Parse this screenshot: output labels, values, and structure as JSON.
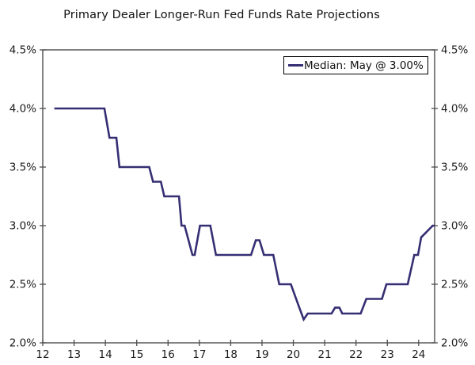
{
  "chart_data": {
    "type": "line",
    "title": "Primary Dealer Longer-Run Fed Funds Rate Projections",
    "xlabel": "",
    "ylabel": "",
    "xlim": [
      12,
      24.51
    ],
    "ylim": [
      2.0,
      4.5
    ],
    "grid": false,
    "legend_position": "top-right",
    "y_axis_sides": [
      "left",
      "right"
    ],
    "x_ticks": [
      {
        "value": 12,
        "label": "12"
      },
      {
        "value": 13,
        "label": "13"
      },
      {
        "value": 14,
        "label": "14"
      },
      {
        "value": 15,
        "label": "15"
      },
      {
        "value": 16,
        "label": "16"
      },
      {
        "value": 17,
        "label": "17"
      },
      {
        "value": 18,
        "label": "18"
      },
      {
        "value": 19,
        "label": "19"
      },
      {
        "value": 20,
        "label": "20"
      },
      {
        "value": 21,
        "label": "21"
      },
      {
        "value": 22,
        "label": "22"
      },
      {
        "value": 23,
        "label": "23"
      },
      {
        "value": 24,
        "label": "24"
      }
    ],
    "y_ticks": [
      {
        "value": 2.0,
        "label": "2.0%"
      },
      {
        "value": 2.5,
        "label": "2.5%"
      },
      {
        "value": 3.0,
        "label": "3.0%"
      },
      {
        "value": 3.5,
        "label": "3.5%"
      },
      {
        "value": 4.0,
        "label": "4.0%"
      },
      {
        "value": 4.5,
        "label": "4.5%"
      }
    ],
    "legend": [
      {
        "label": "Median: May @ 3.00%",
        "color": "#352e73"
      }
    ],
    "series": [
      {
        "name": "Median",
        "color": "#352e73",
        "points": [
          [
            12.37,
            4.0
          ],
          [
            13.97,
            4.0
          ],
          [
            14.13,
            3.75
          ],
          [
            14.35,
            3.75
          ],
          [
            14.45,
            3.5
          ],
          [
            15.4,
            3.5
          ],
          [
            15.52,
            3.375
          ],
          [
            15.77,
            3.375
          ],
          [
            15.88,
            3.25
          ],
          [
            16.35,
            3.25
          ],
          [
            16.43,
            3.0
          ],
          [
            16.53,
            3.0
          ],
          [
            16.78,
            2.75
          ],
          [
            16.85,
            2.75
          ],
          [
            17.02,
            3.0
          ],
          [
            17.35,
            3.0
          ],
          [
            17.53,
            2.75
          ],
          [
            18.65,
            2.75
          ],
          [
            18.8,
            2.875
          ],
          [
            18.92,
            2.875
          ],
          [
            19.06,
            2.75
          ],
          [
            19.36,
            2.75
          ],
          [
            19.55,
            2.5
          ],
          [
            19.92,
            2.5
          ],
          [
            20.15,
            2.33
          ],
          [
            20.33,
            2.2
          ],
          [
            20.46,
            2.25
          ],
          [
            21.22,
            2.25
          ],
          [
            21.33,
            2.3
          ],
          [
            21.47,
            2.3
          ],
          [
            21.56,
            2.25
          ],
          [
            22.15,
            2.25
          ],
          [
            22.33,
            2.375
          ],
          [
            22.83,
            2.375
          ],
          [
            22.97,
            2.5
          ],
          [
            23.65,
            2.5
          ],
          [
            23.86,
            2.75
          ],
          [
            23.98,
            2.75
          ],
          [
            24.08,
            2.9
          ],
          [
            24.45,
            3.0
          ],
          [
            24.51,
            3.0
          ]
        ]
      }
    ],
    "colors": {
      "line": "#352e73",
      "axis": "#4d4d4d",
      "text": "#1a1a1a",
      "background": "#ffffff"
    }
  }
}
